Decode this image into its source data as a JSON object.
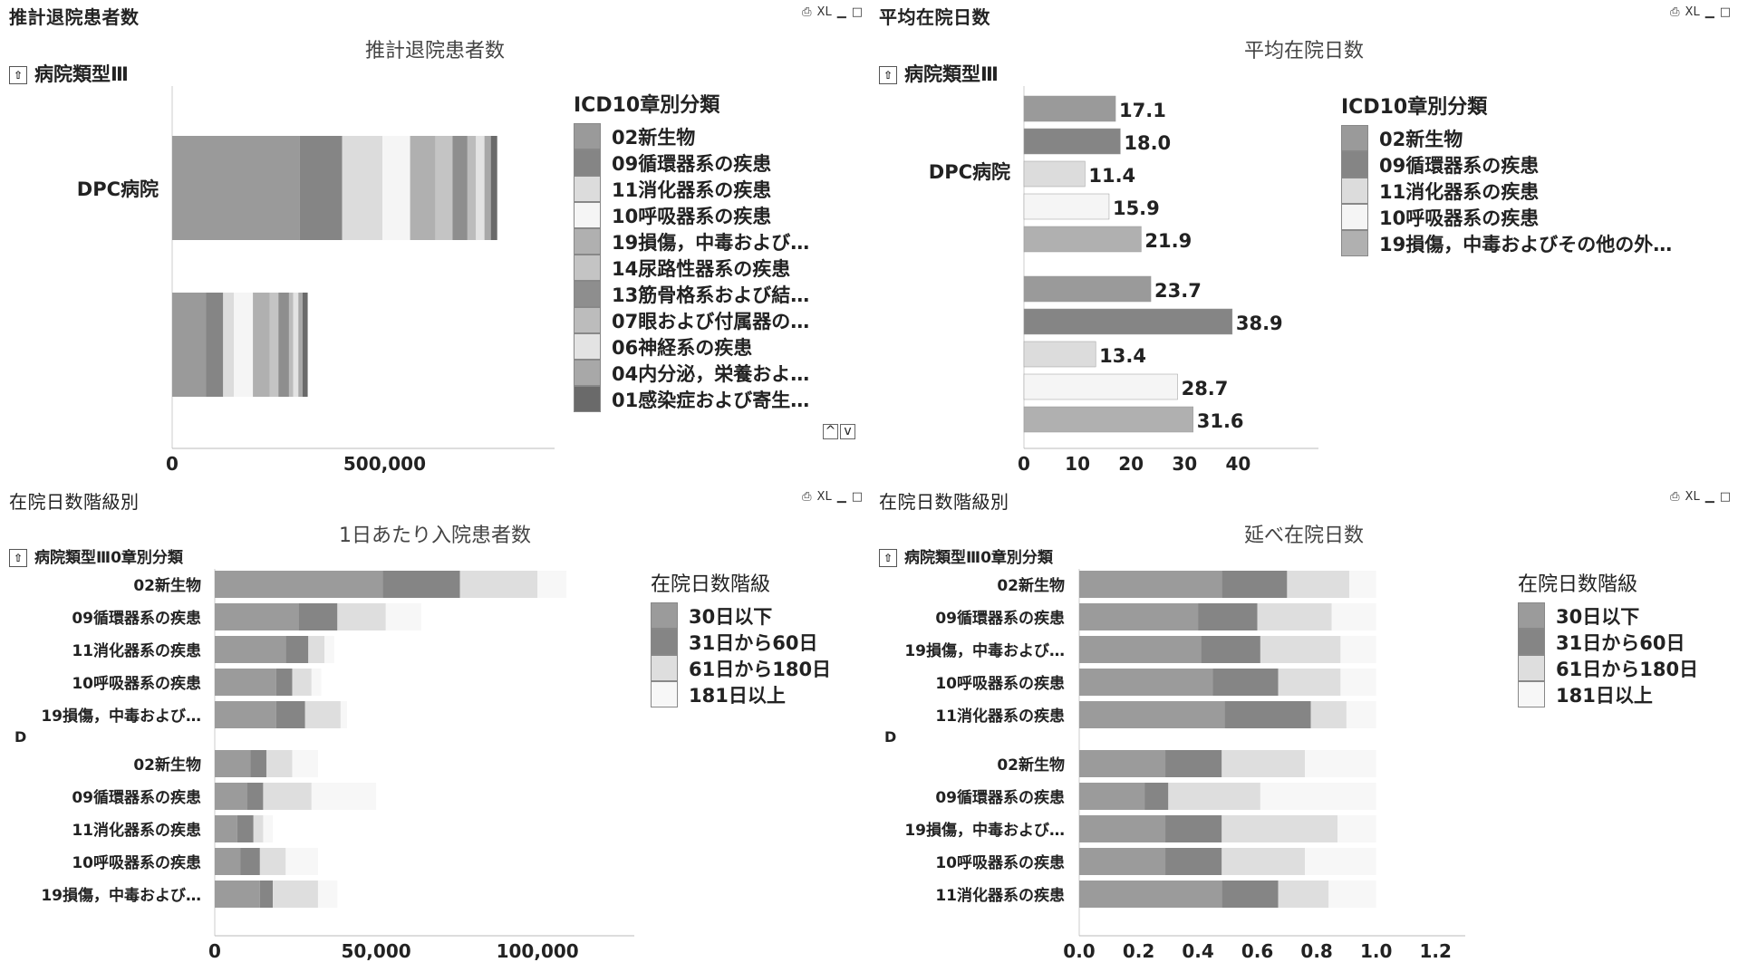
{
  "colors": {
    "grey1": "#9a9a9a",
    "grey2": "#858585",
    "grey3": "#dcdcdc",
    "grey4": "#f5f5f5",
    "grey5": "#b0b0b0",
    "grey6": "#c4c4c4",
    "grey7": "#8e8e8e",
    "grey8": "#bcbcbc",
    "grey9": "#e3e3e3",
    "grey10": "#a8a8a8",
    "grey11": "#6a6a6a",
    "band_30": "#9b9b9b",
    "band_60": "#858585",
    "band_180": "#dedede",
    "band_181": "#f7f7f7"
  },
  "window_controls": {
    "print": "⎙",
    "xl": "XL",
    "minimize": "▁",
    "maximize": "□"
  },
  "panels": {
    "p1": {
      "panel_title": "推計退院患者数",
      "chart_title": "推計退院患者数",
      "drill_label": "病院類型Ⅲ",
      "legend_title": "ICD10章別分類",
      "legend_items": [
        "02新生物",
        "09循環器系の疾患",
        "11消化器系の疾患",
        "10呼吸器系の疾患",
        "19損傷，中毒および…",
        "14尿路性器系の疾患",
        "13筋骨格系および結…",
        "07眼および付属器の…",
        "06神経系の疾患",
        "04内分泌，栄養およ…",
        "01感染症および寄生…"
      ],
      "scroll_up": "^",
      "scroll_down": "v"
    },
    "p2": {
      "panel_title": "平均在院日数",
      "chart_title": "平均在院日数",
      "drill_label": "病院類型Ⅲ",
      "legend_title": "ICD10章別分類",
      "legend_items": [
        "02新生物",
        "09循環器系の疾患",
        "11消化器系の疾患",
        "10呼吸器系の疾患",
        "19損傷，中毒およびその他の外…"
      ]
    },
    "p3": {
      "panel_title": "在院日数階級別",
      "chart_title": "1日あたり入院患者数",
      "drill_label": "病院類型Ⅲ0章別分類",
      "legend_title": "在院日数階級",
      "legend_items": [
        "30日以下",
        "31日から60日",
        "61日から180日",
        "181日以上"
      ]
    },
    "p4": {
      "panel_title": "在院日数階級別",
      "chart_title": "延べ在院日数",
      "drill_label": "病院類型Ⅲ0章別分類",
      "legend_title": "在院日数階級",
      "legend_items": [
        "30日以下",
        "31日から60日",
        "61日から180日",
        "181日以上"
      ]
    }
  },
  "chart_data": [
    {
      "type": "bar",
      "orientation": "horizontal",
      "stacked": true,
      "title": "推計退院患者数",
      "categories": [
        "DPC病院",
        ""
      ],
      "xlim": [
        0,
        900000
      ],
      "xticks": [
        0,
        500000
      ],
      "xtick_labels": [
        "0",
        "500,000"
      ],
      "series": [
        {
          "name": "02新生物",
          "values": [
            300000,
            80000
          ]
        },
        {
          "name": "09循環器系の疾患",
          "values": [
            100000,
            40000
          ]
        },
        {
          "name": "11消化器系の疾患",
          "values": [
            95000,
            25000
          ]
        },
        {
          "name": "10呼吸器系の疾患",
          "values": [
            65000,
            45000
          ]
        },
        {
          "name": "19損傷，中毒および…",
          "values": [
            60000,
            40000
          ]
        },
        {
          "name": "14尿路性器系の疾患",
          "values": [
            40000,
            20000
          ]
        },
        {
          "name": "13筋骨格系および結…",
          "values": [
            35000,
            25000
          ]
        },
        {
          "name": "07眼および付属器の…",
          "values": [
            20000,
            10000
          ]
        },
        {
          "name": "06神経系の疾患",
          "values": [
            20000,
            12000
          ]
        },
        {
          "name": "04内分泌，栄養およ…",
          "values": [
            15000,
            10000
          ]
        },
        {
          "name": "01感染症および寄生…",
          "values": [
            15000,
            12000
          ]
        }
      ]
    },
    {
      "type": "bar",
      "orientation": "horizontal",
      "title": "平均在院日数",
      "group_label": "DPC病院",
      "xlim": [
        0,
        55
      ],
      "xticks": [
        0,
        10,
        20,
        30,
        40
      ],
      "values": [
        17.1,
        18.0,
        11.4,
        15.9,
        21.9,
        23.7,
        38.9,
        13.4,
        28.7,
        31.6
      ],
      "value_labels": [
        "17.1",
        "18.0",
        "11.4",
        "15.9",
        "21.9",
        "23.7",
        "38.9",
        "13.4",
        "28.7",
        "31.6"
      ]
    },
    {
      "type": "bar",
      "orientation": "horizontal",
      "stacked": true,
      "title": "1日あたり入院患者数",
      "categories": [
        "02新生物",
        "09循環器系の疾患",
        "11消化器系の疾患",
        "10呼吸器系の疾患",
        "19損傷，中毒および…",
        "02新生物",
        "09循環器系の疾患",
        "11消化器系の疾患",
        "10呼吸器系の疾患",
        "19損傷，中毒および…"
      ],
      "group_label": "D",
      "xlim": [
        0,
        130000
      ],
      "xticks": [
        0,
        50000,
        100000
      ],
      "xtick_labels": [
        "0",
        "50,000",
        "100,000"
      ],
      "series": [
        {
          "name": "30日以下",
          "values": [
            52000,
            26000,
            22000,
            19000,
            19000,
            11000,
            10000,
            7000,
            8000,
            14000
          ]
        },
        {
          "name": "31日から60日",
          "values": [
            24000,
            12000,
            7000,
            5000,
            9000,
            5000,
            5000,
            5000,
            6000,
            4000
          ]
        },
        {
          "name": "61日から180日",
          "values": [
            24000,
            15000,
            5000,
            6000,
            11000,
            8000,
            15000,
            3000,
            8000,
            14000
          ]
        },
        {
          "name": "181日以上",
          "values": [
            9000,
            11000,
            3000,
            3000,
            2000,
            8000,
            20000,
            3000,
            10000,
            6000
          ]
        }
      ]
    },
    {
      "type": "bar",
      "orientation": "horizontal",
      "stacked": true,
      "title": "延べ在院日数",
      "categories": [
        "02新生物",
        "09循環器系の疾患",
        "19損傷，中毒および…",
        "10呼吸器系の疾患",
        "11消化器系の疾患",
        "02新生物",
        "09循環器系の疾患",
        "19損傷，中毒および…",
        "10呼吸器系の疾患",
        "11消化器系の疾患"
      ],
      "group_label": "D",
      "xlim": [
        0,
        1.3
      ],
      "xticks": [
        0.0,
        0.2,
        0.4,
        0.6,
        0.8,
        1.0,
        1.2
      ],
      "xtick_labels": [
        "0.0",
        "0.2",
        "0.4",
        "0.6",
        "0.8",
        "1.0",
        "1.2"
      ],
      "series": [
        {
          "name": "30日以下",
          "values": [
            0.48,
            0.4,
            0.41,
            0.45,
            0.49,
            0.29,
            0.22,
            0.29,
            0.29,
            0.48
          ]
        },
        {
          "name": "31日から60日",
          "values": [
            0.22,
            0.2,
            0.2,
            0.22,
            0.29,
            0.19,
            0.08,
            0.19,
            0.19,
            0.19
          ]
        },
        {
          "name": "61日から180日",
          "values": [
            0.21,
            0.25,
            0.27,
            0.21,
            0.12,
            0.28,
            0.31,
            0.39,
            0.28,
            0.17
          ]
        },
        {
          "name": "181日以上",
          "values": [
            0.09,
            0.15,
            0.12,
            0.12,
            0.1,
            0.24,
            0.39,
            0.13,
            0.24,
            0.16
          ]
        }
      ]
    }
  ]
}
